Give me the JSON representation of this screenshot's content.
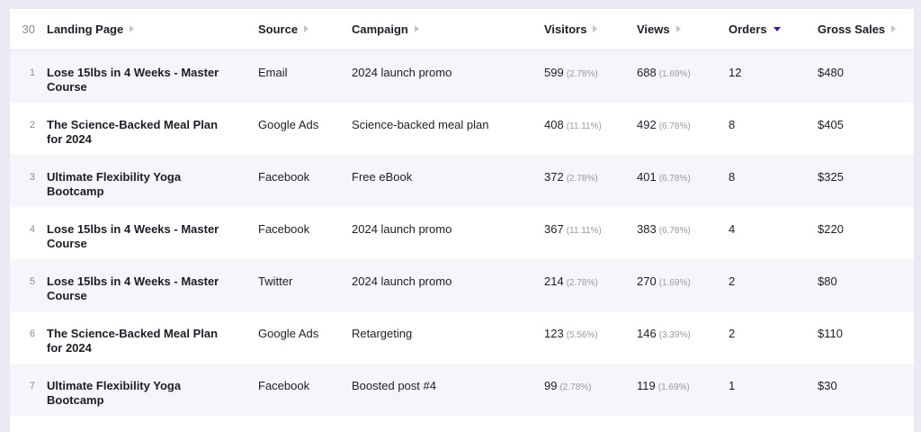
{
  "table": {
    "row_count": "30",
    "columns": [
      "Landing Page",
      "Source",
      "Campaign",
      "Visitors",
      "Views",
      "Orders",
      "Gross Sales"
    ],
    "sorted_column": "Orders",
    "sort_direction": "descending",
    "accent_color": "#3b1e8c",
    "rows": [
      {
        "index": "1",
        "landing_page": "Lose 15lbs in 4 Weeks - Master Course",
        "source": "Email",
        "campaign": "2024 launch promo",
        "visitors": "599",
        "visitors_pct": "(2.78%)",
        "views": "688",
        "views_pct": "(1.69%)",
        "orders": "12",
        "gross_sales": "$480"
      },
      {
        "index": "2",
        "landing_page": "The Science-Backed Meal Plan for 2024",
        "source": "Google Ads",
        "campaign": "Science-backed meal plan",
        "visitors": "408",
        "visitors_pct": "(11.11%)",
        "views": "492",
        "views_pct": "(6.78%)",
        "orders": "8",
        "gross_sales": "$405"
      },
      {
        "index": "3",
        "landing_page": "Ultimate Flexibility Yoga Bootcamp",
        "source": "Facebook",
        "campaign": "Free eBook",
        "visitors": "372",
        "visitors_pct": "(2.78%)",
        "views": "401",
        "views_pct": "(6.78%)",
        "orders": "8",
        "gross_sales": "$325"
      },
      {
        "index": "4",
        "landing_page": "Lose 15lbs in 4 Weeks - Master Course",
        "source": "Facebook",
        "campaign": "2024 launch promo",
        "visitors": "367",
        "visitors_pct": "(11.11%)",
        "views": "383",
        "views_pct": "(6.78%)",
        "orders": "4",
        "gross_sales": "$220"
      },
      {
        "index": "5",
        "landing_page": "Lose 15lbs in 4 Weeks - Master Course",
        "source": "Twitter",
        "campaign": "2024 launch promo",
        "visitors": "214",
        "visitors_pct": "(2.78%)",
        "views": "270",
        "views_pct": "(1.69%)",
        "orders": "2",
        "gross_sales": "$80"
      },
      {
        "index": "6",
        "landing_page": "The Science-Backed Meal Plan for 2024",
        "source": "Google Ads",
        "campaign": "Retargeting",
        "visitors": "123",
        "visitors_pct": "(5.56%)",
        "views": "146",
        "views_pct": "(3.39%)",
        "orders": "2",
        "gross_sales": "$110"
      },
      {
        "index": "7",
        "landing_page": "Ultimate Flexibility Yoga Bootcamp",
        "source": "Facebook",
        "campaign": "Boosted post #4",
        "visitors": "99",
        "visitors_pct": "(2.78%)",
        "views": "119",
        "views_pct": "(1.69%)",
        "orders": "1",
        "gross_sales": "$30"
      }
    ]
  }
}
